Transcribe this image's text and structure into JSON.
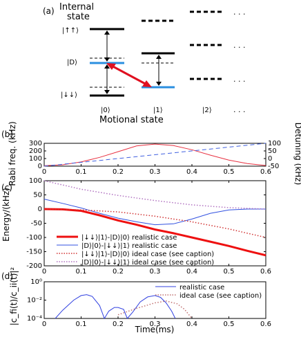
{
  "panel_a": {
    "label": "(a)",
    "internal_state_line1": "Internal",
    "internal_state_line2": "state",
    "state_uu": "|↑↑⟩",
    "state_D": "|D⟩",
    "state_dd": "|↓↓⟩",
    "motional_label": "Motional state",
    "motional_ticks": [
      "|0⟩",
      "|1⟩",
      "|2⟩"
    ],
    "ellipsis": ". . .",
    "colors": {
      "blue_level": "#2a8fe0",
      "red_arrow": "#e01020",
      "black": "#000000"
    }
  },
  "chart_data": [
    {
      "panel": "(b)",
      "type": "line",
      "ylabel_left": "Rabi freq. (kHz)",
      "ylabel_right": "Detuning (kHz)",
      "x_ticks": [
        0,
        0.1,
        0.2,
        0.3,
        0.4,
        0.5,
        0.6
      ],
      "y_ticks_left": [
        0,
        100,
        200,
        300
      ],
      "y_ticks_right": [
        -50,
        0,
        50,
        100
      ],
      "xlim": [
        0,
        0.6
      ],
      "ylim_left": [
        0,
        300
      ],
      "ylim_right": [
        -50,
        100
      ],
      "series": [
        {
          "axis": "left",
          "color": "#e83040",
          "style": "solid",
          "x": [
            0,
            0.05,
            0.1,
            0.15,
            0.2,
            0.25,
            0.3,
            0.35,
            0.4,
            0.45,
            0.5,
            0.55,
            0.6
          ],
          "y": [
            5,
            18,
            55,
            115,
            190,
            265,
            290,
            270,
            215,
            145,
            80,
            35,
            8
          ]
        },
        {
          "axis": "right",
          "color": "#4060e0",
          "style": "dashed",
          "x": [
            0,
            0.6
          ],
          "y": [
            -50,
            100
          ]
        }
      ]
    },
    {
      "panel": "(c)",
      "type": "line",
      "ylabel": "Energy/(kHz)",
      "x_ticks": [
        0,
        0.1,
        0.2,
        0.3,
        0.4,
        0.5,
        0.6
      ],
      "y_ticks": [
        -200,
        -150,
        -100,
        -50,
        0,
        50,
        100
      ],
      "xlim": [
        0,
        0.6
      ],
      "ylim": [
        -200,
        100
      ],
      "legend": [
        "|↓↓⟩|1⟩-|D⟩|0⟩ realistic case",
        "|D⟩|0⟩-|↓↓⟩|1⟩ realistic case",
        "|↓↓⟩|1⟩-|D⟩|0⟩ ideal case (see caption)",
        "|D⟩|0⟩-|↓↓⟩|1⟩ ideal case (see caption)"
      ],
      "series": [
        {
          "color": "#ee1010",
          "style": "thick",
          "x": [
            0,
            0.05,
            0.1,
            0.15,
            0.2,
            0.25,
            0.3,
            0.35,
            0.4,
            0.45,
            0.5,
            0.55,
            0.6
          ],
          "y": [
            0,
            -1,
            -6,
            -22,
            -40,
            -55,
            -72,
            -85,
            -100,
            -115,
            -130,
            -147,
            -163
          ]
        },
        {
          "color": "#3050e0",
          "style": "solid",
          "x": [
            0,
            0.05,
            0.1,
            0.15,
            0.2,
            0.25,
            0.3,
            0.35,
            0.4,
            0.45,
            0.5,
            0.55,
            0.6
          ],
          "y": [
            35,
            20,
            4,
            -15,
            -32,
            -45,
            -55,
            -52,
            -35,
            -15,
            -3,
            0,
            0
          ]
        },
        {
          "color": "#d03030",
          "style": "dotted",
          "x": [
            0,
            0.1,
            0.2,
            0.3,
            0.4,
            0.5,
            0.6
          ],
          "y": [
            0,
            -3,
            -10,
            -25,
            -45,
            -70,
            -100
          ]
        },
        {
          "color": "#b070c0",
          "style": "dotted",
          "x": [
            0,
            0.1,
            0.2,
            0.3,
            0.4,
            0.5,
            0.6
          ],
          "y": [
            100,
            70,
            48,
            30,
            15,
            5,
            0
          ]
        }
      ]
    },
    {
      "panel": "(d)",
      "type": "line",
      "ylabel": "|c_fi(t)/c_ii(t)|²",
      "xlabel": "Time(ms)",
      "x_ticks": [
        0,
        0.1,
        0.2,
        0.3,
        0.4,
        0.5,
        0.6
      ],
      "y_ticks": [
        "10⁻⁴",
        "10⁻²",
        "10⁰"
      ],
      "xlim": [
        0,
        0.6
      ],
      "ylim_log10": [
        -4,
        0
      ],
      "legend": [
        "realistic case",
        "ideal case (see caption)"
      ],
      "series": [
        {
          "color": "#3040e0",
          "style": "solid",
          "x": [
            0.03,
            0.05,
            0.08,
            0.1,
            0.115,
            0.13,
            0.15,
            0.163,
            0.175,
            0.19,
            0.2,
            0.215,
            0.225,
            0.24,
            0.26,
            0.28,
            0.3,
            0.315,
            0.33,
            0.345,
            0.355
          ],
          "y_log10": [
            -4,
            -3.1,
            -2.0,
            -1.5,
            -1.4,
            -1.6,
            -2.6,
            -4,
            -3.2,
            -2.8,
            -2.8,
            -3.0,
            -4,
            -3.3,
            -2.2,
            -1.65,
            -1.5,
            -1.7,
            -2.3,
            -3.2,
            -4
          ]
        },
        {
          "color": "#c07070",
          "style": "dotted",
          "x": [
            0.2,
            0.25,
            0.3,
            0.33,
            0.36,
            0.38,
            0.4
          ],
          "y_log10": [
            -3.6,
            -2.9,
            -2.3,
            -2.1,
            -2.4,
            -3.0,
            -4
          ]
        }
      ]
    }
  ],
  "panel_b_label": "(b)",
  "panel_c_label": "(c)",
  "panel_d_label": "(d)"
}
